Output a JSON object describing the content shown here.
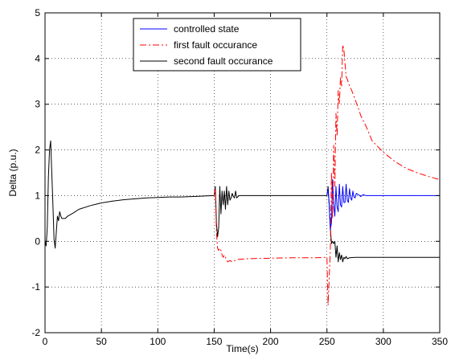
{
  "chart_data": {
    "type": "line",
    "title": "",
    "xlabel": "Time(s)",
    "ylabel": "Delta (p.u.)",
    "xlim": [
      0,
      350
    ],
    "ylim": [
      -2,
      5
    ],
    "xticks": [
      0,
      50,
      100,
      150,
      200,
      250,
      300,
      350
    ],
    "yticks": [
      -2,
      -1,
      0,
      1,
      2,
      3,
      4,
      5
    ],
    "xtick_labels": [
      "0",
      "50",
      "100",
      "150",
      "200",
      "250",
      "300",
      "350"
    ],
    "ytick_labels": [
      "-2",
      "-1",
      "0",
      "1",
      "2",
      "3",
      "4",
      "5"
    ],
    "grid": true,
    "legend_position": "top-center",
    "series": [
      {
        "name": "controlled state",
        "color": "#0000ff",
        "dash": "solid",
        "x": [
          250,
          251,
          252,
          253,
          254,
          255,
          256,
          257,
          258,
          259,
          260,
          261,
          262,
          263,
          264,
          265,
          266,
          267,
          268,
          269,
          270,
          271,
          272,
          273,
          274,
          275,
          276,
          278,
          280,
          282,
          285,
          290,
          300,
          320,
          350
        ],
        "y": [
          1.0,
          1.15,
          0.8,
          0.25,
          0.4,
          1.35,
          0.8,
          0.55,
          1.2,
          0.75,
          0.65,
          1.25,
          0.8,
          0.75,
          1.2,
          0.85,
          0.85,
          1.25,
          0.9,
          0.85,
          1.15,
          0.95,
          0.9,
          1.1,
          0.97,
          0.95,
          1.05,
          1.02,
          0.98,
          1.02,
          1.0,
          1.0,
          1.0,
          1.0,
          1.0
        ]
      },
      {
        "name": "first fault occurance",
        "color": "#ff0000",
        "dash": "dashdot",
        "x": [
          150,
          151,
          152,
          153,
          154,
          155,
          156,
          157,
          158,
          159,
          160,
          161,
          162,
          164,
          166,
          170,
          180,
          200,
          220,
          240,
          250,
          251,
          252,
          253,
          254,
          255,
          256,
          257,
          258,
          259,
          260,
          261,
          262,
          263,
          264,
          265,
          266,
          267,
          268,
          270,
          272,
          275,
          278,
          280,
          285,
          290,
          300,
          310,
          320,
          330,
          340,
          350
        ],
        "y": [
          1.0,
          1.15,
          0.2,
          -0.15,
          -0.2,
          -0.15,
          -0.2,
          -0.3,
          -0.35,
          -0.3,
          -0.35,
          -0.4,
          -0.45,
          -0.42,
          -0.45,
          -0.4,
          -0.38,
          -0.37,
          -0.36,
          -0.36,
          -0.35,
          -1.4,
          -0.8,
          -0.2,
          1.5,
          0.5,
          2.1,
          1.2,
          2.8,
          2.3,
          3.3,
          3.0,
          3.6,
          3.4,
          4.3,
          4.2,
          3.9,
          3.6,
          3.55,
          3.4,
          3.3,
          3.1,
          2.9,
          2.75,
          2.5,
          2.2,
          1.95,
          1.75,
          1.6,
          1.5,
          1.42,
          1.35
        ]
      },
      {
        "name": "second fault occurance",
        "color": "#000000",
        "dash": "solid",
        "x": [
          0,
          1,
          2,
          3,
          4,
          5,
          6,
          7,
          8,
          9,
          10,
          11,
          12,
          13,
          14,
          15,
          16,
          18,
          20,
          25,
          30,
          40,
          50,
          60,
          70,
          80,
          90,
          100,
          110,
          120,
          130,
          140,
          150,
          151,
          152,
          153,
          154,
          155,
          156,
          157,
          158,
          159,
          160,
          161,
          162,
          163,
          164,
          165,
          166,
          167,
          168,
          169,
          170,
          172,
          175,
          180,
          190,
          200,
          210,
          220,
          230,
          240,
          250,
          251,
          252,
          253,
          254,
          255,
          256,
          257,
          258,
          259,
          260,
          261,
          262,
          263,
          264,
          265,
          266,
          267,
          268,
          270,
          275,
          280,
          290,
          300,
          320,
          350
        ],
        "y": [
          0.0,
          -0.1,
          0.3,
          1.4,
          2.0,
          2.2,
          1.5,
          0.8,
          0.05,
          -0.15,
          0.2,
          0.55,
          0.45,
          0.65,
          0.55,
          0.5,
          0.5,
          0.5,
          0.55,
          0.62,
          0.7,
          0.78,
          0.84,
          0.88,
          0.91,
          0.93,
          0.95,
          0.96,
          0.97,
          0.97,
          0.98,
          0.99,
          1.0,
          1.2,
          0.4,
          0.1,
          0.3,
          1.2,
          0.6,
          1.1,
          0.8,
          1.1,
          0.7,
          1.2,
          0.8,
          1.1,
          0.9,
          0.95,
          1.05,
          0.98,
          0.95,
          1.1,
          0.95,
          1.0,
          1.0,
          1.0,
          1.0,
          1.0,
          1.0,
          1.0,
          1.0,
          1.0,
          1.0,
          1.2,
          0.8,
          0.3,
          -0.05,
          0.0,
          -0.05,
          0.0,
          -0.35,
          -0.1,
          -0.45,
          -0.25,
          -0.4,
          -0.3,
          -0.45,
          -0.35,
          -0.38,
          -0.33,
          -0.38,
          -0.36,
          -0.35,
          -0.35,
          -0.35,
          -0.35,
          -0.35,
          -0.35
        ]
      }
    ]
  }
}
